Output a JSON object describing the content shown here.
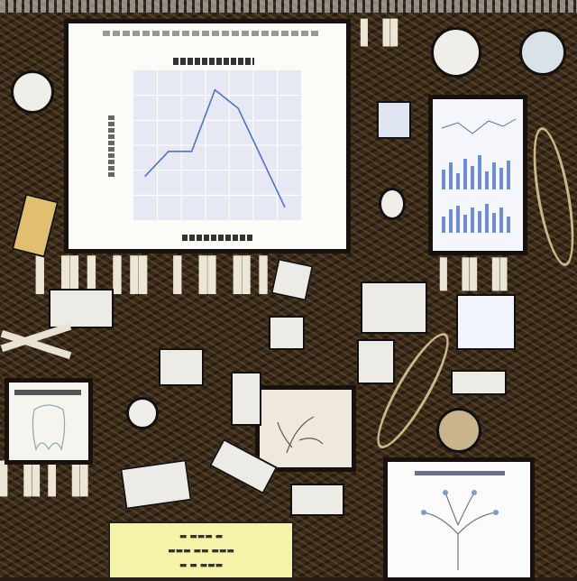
{
  "chart_data": {
    "type": "line",
    "x": [
      1,
      2,
      3,
      4,
      5,
      6,
      7
    ],
    "values": [
      0.3,
      0.5,
      0.5,
      1.0,
      0.85,
      0.45,
      0.05
    ],
    "ylim": [
      0,
      1.1
    ],
    "xlim": [
      0.8,
      7.4
    ],
    "grid": true,
    "colors": {
      "line": "#4f73c4",
      "plot_bg": "#e6e9f4"
    }
  }
}
